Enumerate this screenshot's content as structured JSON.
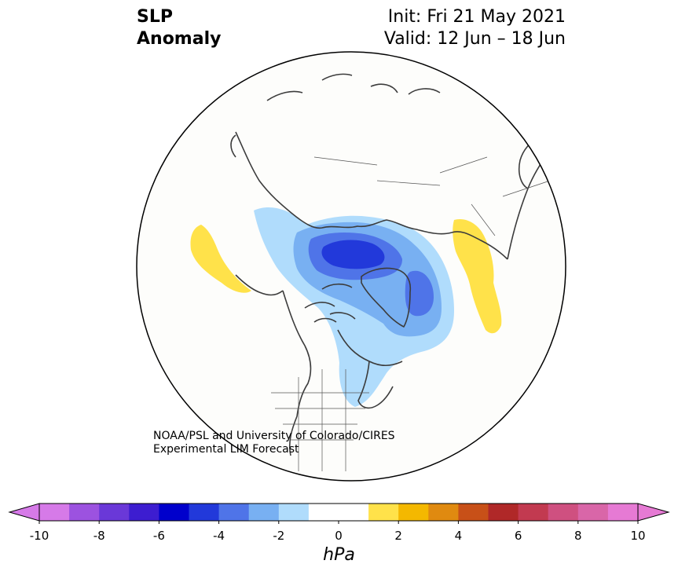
{
  "title": {
    "line1": "SLP",
    "line2": "Anomaly"
  },
  "subtitle": {
    "init": "Init: Fri 21 May 2021",
    "valid": "Valid: 12 Jun – 18 Jun"
  },
  "credit": {
    "line1": "NOAA/PSL and University of Colorado/CIRES",
    "line2": "Experimental LIM Forecast"
  },
  "colorbar": {
    "unit": "hPa",
    "ticks": [
      "-10",
      "-8",
      "-6",
      "-4",
      "-2",
      "0",
      "2",
      "4",
      "6",
      "8",
      "10"
    ],
    "colors": [
      "#d67ae8",
      "#9c52e0",
      "#6a38d8",
      "#3d1dd0",
      "#0000cc",
      "#2239da",
      "#4f74e8",
      "#78b0f2",
      "#b0dcfc",
      "#ffffff",
      "#ffffff",
      "#ffe24a",
      "#f4b800",
      "#e08a10",
      "#c85018",
      "#b02828",
      "#c23a50",
      "#cf5080",
      "#d966a8",
      "#e67ad4"
    ],
    "extend_min_color": "#d67ae8",
    "extend_max_color": "#e67ad4"
  },
  "map": {
    "projection": "north-polar-stereographic",
    "ocean_color": "#fdfdfb",
    "coast_color": "#3c3c3c"
  }
}
